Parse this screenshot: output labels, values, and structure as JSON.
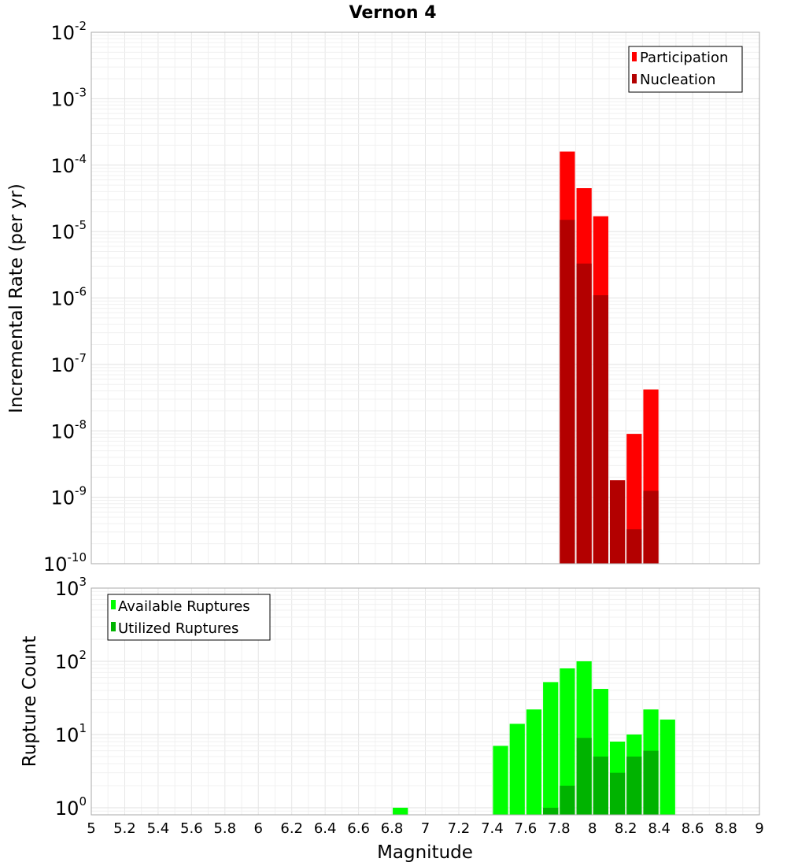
{
  "chart_data": [
    {
      "type": "bar",
      "title": "Vernon 4",
      "xlabel": "",
      "ylabel": "Incremental Rate (per yr)",
      "yscale": "log",
      "ylim": [
        1e-10,
        0.01
      ],
      "xlim": [
        5,
        9
      ],
      "bin_width": 0.1,
      "legend": "top-right",
      "grid": true,
      "y_ticks": [
        {
          "base": "10",
          "exp": "-10",
          "value": 1e-10
        },
        {
          "base": "10",
          "exp": "-9",
          "value": 1e-09
        },
        {
          "base": "10",
          "exp": "-8",
          "value": 1e-08
        },
        {
          "base": "10",
          "exp": "-7",
          "value": 1e-07
        },
        {
          "base": "10",
          "exp": "-6",
          "value": 1e-06
        },
        {
          "base": "10",
          "exp": "-5",
          "value": 1e-05
        },
        {
          "base": "10",
          "exp": "-4",
          "value": 0.0001
        },
        {
          "base": "10",
          "exp": "-3",
          "value": 0.001
        },
        {
          "base": "10",
          "exp": "-2",
          "value": 0.01
        }
      ],
      "series": [
        {
          "name": "Participation",
          "color": "#ff0000",
          "x": [
            7.85,
            7.95,
            8.05,
            8.15,
            8.25,
            8.35
          ],
          "values": [
            0.00016,
            4.5e-05,
            1.7e-05,
            1.8e-09,
            9e-09,
            4.2e-08
          ]
        },
        {
          "name": "Nucleation",
          "color": "#b30000",
          "x": [
            7.85,
            7.95,
            8.05,
            8.15,
            8.25,
            8.35
          ],
          "values": [
            1.5e-05,
            3.3e-06,
            1.1e-06,
            1.8e-09,
            3.3e-10,
            1.25e-09
          ]
        }
      ]
    },
    {
      "type": "bar",
      "title": "",
      "xlabel": "Magnitude",
      "ylabel": "Rupture Count",
      "yscale": "log",
      "ylim": [
        0.8,
        1000
      ],
      "xlim": [
        5,
        9
      ],
      "bin_width": 0.1,
      "legend": "top-left",
      "grid": true,
      "y_ticks": [
        {
          "base": "10",
          "exp": "0",
          "value": 1
        },
        {
          "base": "10",
          "exp": "1",
          "value": 10
        },
        {
          "base": "10",
          "exp": "2",
          "value": 100
        },
        {
          "base": "10",
          "exp": "3",
          "value": 1000
        }
      ],
      "x_ticks": [
        "5",
        "5.2",
        "5.4",
        "5.6",
        "5.8",
        "6",
        "6.2",
        "6.4",
        "6.6",
        "6.8",
        "7",
        "7.2",
        "7.4",
        "7.6",
        "7.8",
        "8",
        "8.2",
        "8.4",
        "8.6",
        "8.8",
        "9"
      ],
      "series": [
        {
          "name": "Available Ruptures",
          "color": "#00ff00",
          "x": [
            6.85,
            7.45,
            7.55,
            7.65,
            7.75,
            7.85,
            7.95,
            8.05,
            8.15,
            8.25,
            8.35,
            8.45
          ],
          "values": [
            1,
            7,
            14,
            22,
            52,
            80,
            100,
            42,
            8,
            10,
            22,
            16
          ]
        },
        {
          "name": "Utilized Ruptures",
          "color": "#00b300",
          "x": [
            7.75,
            7.85,
            7.95,
            8.05,
            8.15,
            8.25,
            8.35
          ],
          "values": [
            1,
            2,
            9,
            5,
            3,
            5,
            6
          ]
        }
      ]
    }
  ]
}
